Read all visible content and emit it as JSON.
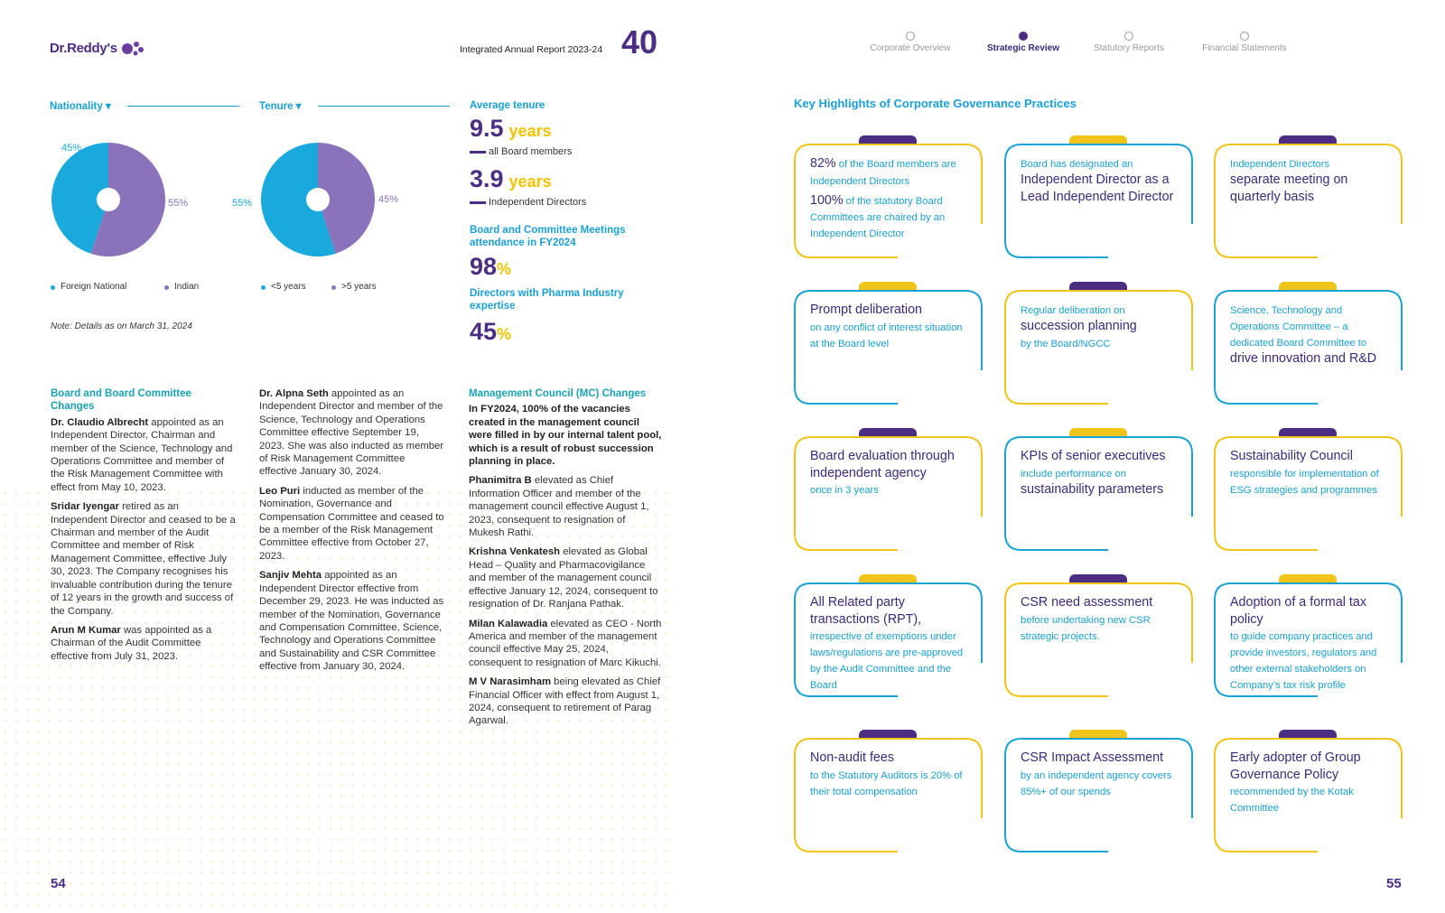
{
  "header": {
    "logo": "Dr.Reddy's",
    "report": "Integrated Annual Report 2023-24",
    "emblem": "40",
    "nav": [
      "Corporate Overview",
      "Strategic Review",
      "Statutory Reports",
      "Financial Statements"
    ],
    "active": 1
  },
  "chart_data": [
    {
      "type": "pie",
      "title": "Nationality ▾",
      "categories": [
        "Foreign National",
        "Indian"
      ],
      "values": [
        45,
        55
      ],
      "value_labels": [
        "45%",
        "55%"
      ],
      "colors": [
        "#1aa9dc",
        "#8a73bb"
      ]
    },
    {
      "type": "pie",
      "title": "Tenure ▾",
      "categories": [
        "<5 years",
        ">5 years"
      ],
      "values": [
        55,
        45
      ],
      "value_labels": [
        "55%",
        "45%"
      ],
      "colors": [
        "#1aa9dc",
        "#8a73bb"
      ]
    }
  ],
  "note": "Note: Details as on March 31, 2024",
  "stats": {
    "title": "Average tenure",
    "items": [
      {
        "value": 9.5,
        "unit": "years",
        "label": "all Board members"
      },
      {
        "value": 3.9,
        "unit": "years",
        "label": "Independent Directors"
      }
    ],
    "attendance": {
      "title": "Board and Committee Meetings attendance in FY2024",
      "value": 98,
      "unit": "%"
    },
    "expertise": {
      "title": "Directors with Pharma Industry expertise",
      "value": 45,
      "unit": "%"
    }
  },
  "columns": [
    {
      "heading": "Board and Board Committee Changes",
      "entries": [
        {
          "name": "Dr. Claudio Albrecht",
          "text": " appointed as an Independent Director, Chairman and member of the Science, Technology and Operations Committee and member of the Risk Management Committee with effect from May 10, 2023."
        },
        {
          "name": "Sridar Iyengar",
          "text": " retired as an Independent Director and ceased to be a Chairman and member of the Audit Committee and member of Risk Management Committee, effective July 30, 2023. The Company recognises his invaluable contribution during the tenure of 12 years in the growth and success of the Company."
        },
        {
          "name": "Arun M Kumar",
          "text": " was appointed as a Chairman of the Audit Committee effective from July 31, 2023."
        }
      ]
    },
    {
      "entries": [
        {
          "name": "Dr. Alpna Seth",
          "text": " appointed as an Independent Director and member of the Science, Technology and Operations Committee effective September 19, 2023. She was also inducted as member of Risk Management Committee effective January 30, 2024."
        },
        {
          "name": "Leo Puri",
          "text": " inducted as member of the Nomination, Governance and Compensation Committee and ceased to be a member of the Risk Management Committee effective from October 27, 2023."
        },
        {
          "name": "Sanjiv Mehta",
          "text": " appointed as an Independent Director effective from December 29, 2023. He was inducted as member of the Nomination, Governance and Compensation Committee, Science, Technology and Operations Committee and Sustainability and CSR Committee effective from January 30, 2024."
        }
      ]
    },
    {
      "heading": "Management Council (MC) Changes",
      "intro": "In FY2024, 100% of the vacancies created in the management council were filled in by our internal talent pool, which is a result of robust succession planning in place.",
      "entries": [
        {
          "name": "Phanimitra B",
          "text": " elevated as Chief Information Officer and member of the management council effective August 1, 2023, consequent to resignation of Mukesh Rathi."
        },
        {
          "name": "Krishna Venkatesh",
          "text": " elevated as Global Head – Quality and Pharmacovigilance and member of the management council effective January 12, 2024, consequent to resignation of Dr. Ranjana Pathak."
        },
        {
          "name": "Milan Kalawadia",
          "text": " elevated as CEO - North America and member of the management council effective May 25, 2024, consequent to resignation of Marc Kikuchi."
        },
        {
          "name": "M V Narasimham",
          "text": " being elevated as Chief Financial Officer with effect from August 1, 2024, consequent to retirement of Parag Agarwal."
        }
      ]
    }
  ],
  "highlights": {
    "title": "Key Highlights of Corporate Governance Practices",
    "cards": [
      [
        [
          {
            "text": "82%",
            "size": "large"
          },
          {
            "text": " of the Board members are Independent Directors",
            "size": "small"
          }
        ],
        [
          {
            "text": "100%",
            "size": "large"
          },
          {
            "text": " of the statutory Board Committees are chaired by an Independent Director",
            "size": "small"
          }
        ]
      ],
      [
        [
          {
            "text": "Board has designated an",
            "size": "small"
          }
        ],
        [
          {
            "text": "Independent Director as a Lead Independent Director",
            "size": "large"
          }
        ]
      ],
      [
        [
          {
            "text": "Independent Directors",
            "size": "small"
          }
        ],
        [
          {
            "text": "separate meeting on quarterly basis",
            "size": "large"
          }
        ]
      ],
      [
        [
          {
            "text": "Prompt deliberation",
            "size": "large"
          }
        ],
        [
          {
            "text": "on any conflict of interest situation at the Board level",
            "size": "small"
          }
        ]
      ],
      [
        [
          {
            "text": "Regular deliberation on",
            "size": "small"
          }
        ],
        [
          {
            "text": "succession planning",
            "size": "large"
          }
        ],
        [
          {
            "text": "by the Board/NGCC",
            "size": "small"
          }
        ]
      ],
      [
        [
          {
            "text": "Science, Technology and Operations Committee – a dedicated Board Committee to",
            "size": "small"
          }
        ],
        [
          {
            "text": "drive innovation and R&D",
            "size": "large"
          }
        ]
      ],
      [
        [
          {
            "text": "Board evaluation through independent agency",
            "size": "large"
          }
        ],
        [
          {
            "text": "once in 3 years",
            "size": "small"
          }
        ]
      ],
      [
        [
          {
            "text": "KPIs of senior executives",
            "size": "large"
          }
        ],
        [
          {
            "text": "include performance on",
            "size": "small"
          }
        ],
        [
          {
            "text": "sustainability parameters",
            "size": "large"
          }
        ]
      ],
      [
        [
          {
            "text": "Sustainability Council",
            "size": "large"
          }
        ],
        [
          {
            "text": "responsible for implementation of ESG strategies and programmes",
            "size": "small"
          }
        ]
      ],
      [
        [
          {
            "text": "All Related party transactions (RPT),",
            "size": "large"
          }
        ],
        [
          {
            "text": "irrespective of exemptions under laws/regulations are pre-approved by the Audit Committee and the Board",
            "size": "small"
          }
        ]
      ],
      [
        [
          {
            "text": "CSR need assessment",
            "size": "large"
          }
        ],
        [
          {
            "text": "before undertaking new CSR strategic projects.",
            "size": "small"
          }
        ]
      ],
      [
        [
          {
            "text": "Adoption of a formal tax policy",
            "size": "large"
          }
        ],
        [
          {
            "text": "to guide company practices and provide investors, regulators and other external stakeholders on Company’s tax risk profile",
            "size": "small"
          }
        ]
      ],
      [
        [
          {
            "text": "Non-audit fees",
            "size": "large"
          }
        ],
        [
          {
            "text": "to the Statutory Auditors is 20% of their total compensation",
            "size": "small"
          }
        ]
      ],
      [
        [
          {
            "text": "CSR Impact Assessment",
            "size": "large"
          }
        ],
        [
          {
            "text": "by an independent agency covers 85%+ of our spends",
            "size": "small"
          }
        ]
      ],
      [
        [
          {
            "text": "Early adopter of Group Governance Policy",
            "size": "large"
          }
        ],
        [
          {
            "text": "recommended by the Kotak Committee",
            "size": "small"
          }
        ]
      ]
    ]
  },
  "page_numbers": [
    54,
    55
  ]
}
